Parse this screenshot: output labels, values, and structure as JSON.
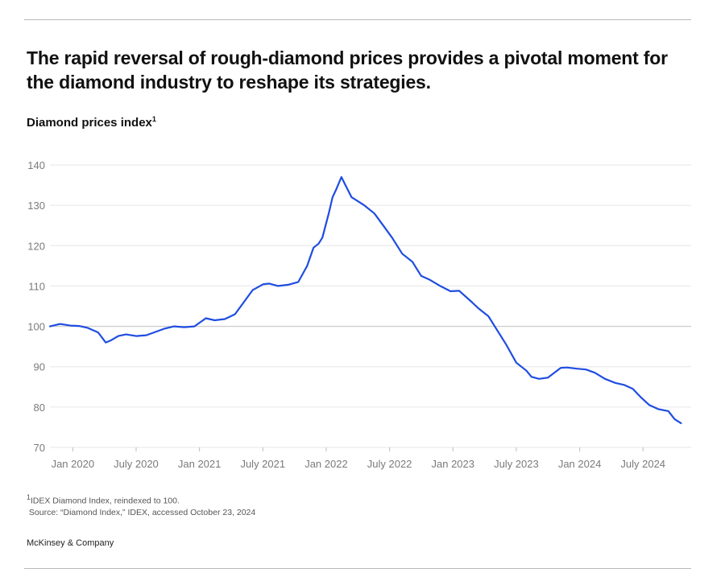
{
  "header": {
    "title": "The rapid reversal of rough-diamond prices provides a pivotal moment for the diamond industry to reshape its strategies.",
    "subtitle": "Diamond prices index",
    "subtitle_note": "1"
  },
  "footer": {
    "note_marker": "1",
    "note": "IDEX Diamond Index, reindexed to 100.",
    "source": " Source: “Diamond Index,” IDEX, accessed October 23, 2024",
    "brand": "McKinsey & Company"
  },
  "colors": {
    "line": "#1f4de0",
    "grid": "#e6e6e6",
    "baseline": "#d4d4d4",
    "tick_text": "#7a7a7a"
  },
  "chart_data": {
    "type": "line",
    "title": "Diamond prices index",
    "ylim": [
      70,
      140
    ],
    "y_ticks": [
      70,
      80,
      90,
      100,
      110,
      120,
      130,
      140
    ],
    "x_ticks": [
      {
        "label": "Jan 2020",
        "x": 2020.0
      },
      {
        "label": "July 2020",
        "x": 2020.5
      },
      {
        "label": "Jan 2021",
        "x": 2021.0
      },
      {
        "label": "July 2021",
        "x": 2021.5
      },
      {
        "label": "Jan 2022",
        "x": 2022.0
      },
      {
        "label": "July 2022",
        "x": 2022.5
      },
      {
        "label": "Jan 2023",
        "x": 2023.0
      },
      {
        "label": "July 2023",
        "x": 2023.5
      },
      {
        "label": "Jan 2024",
        "x": 2024.0
      },
      {
        "label": "July 2024",
        "x": 2024.5
      }
    ],
    "xlim": [
      2019.82,
      2024.88
    ],
    "grid": true,
    "series": [
      {
        "x": [
          2019.82,
          2019.9,
          2019.98,
          2020.05,
          2020.12,
          2020.2,
          2020.26,
          2020.3,
          2020.36,
          2020.42,
          2020.5,
          2020.58,
          2020.65,
          2020.72,
          2020.8,
          2020.88,
          2020.96,
          2021.05,
          2021.12,
          2021.2,
          2021.28,
          2021.35,
          2021.42,
          2021.5,
          2021.55,
          2021.62,
          2021.7,
          2021.78,
          2021.85,
          2021.9,
          2021.94,
          2021.97,
          2022.02,
          2022.05,
          2022.08,
          2022.12,
          2022.16,
          2022.2,
          2022.25,
          2022.3,
          2022.38,
          2022.45,
          2022.52,
          2022.6,
          2022.68,
          2022.75,
          2022.82,
          2022.9,
          2022.98,
          2023.05,
          2023.15,
          2023.2,
          2023.28,
          2023.35,
          2023.42,
          2023.5,
          2023.58,
          2023.62,
          2023.68,
          2023.75,
          2023.85,
          2023.9,
          2023.98,
          2024.05,
          2024.12,
          2024.2,
          2024.28,
          2024.35,
          2024.42,
          2024.48,
          2024.55,
          2024.62,
          2024.7,
          2024.75,
          2024.8
        ],
        "y": [
          100,
          100.6,
          100.2,
          100.1,
          99.6,
          98.5,
          96.0,
          96.5,
          97.6,
          98.0,
          97.6,
          97.8,
          98.6,
          99.4,
          100.0,
          99.8,
          100.0,
          102.0,
          101.5,
          101.8,
          103.0,
          106.0,
          109.0,
          110.4,
          110.6,
          110.0,
          110.3,
          111.0,
          115.0,
          119.5,
          120.5,
          122.0,
          128.0,
          132.0,
          134.0,
          137.0,
          134.5,
          132.0,
          131.0,
          130.0,
          128.0,
          125.0,
          122.0,
          118.0,
          116.0,
          112.5,
          111.5,
          110.0,
          108.7,
          108.8,
          106.0,
          104.5,
          102.5,
          99.0,
          95.5,
          91.0,
          89.0,
          87.5,
          87.0,
          87.3,
          89.7,
          89.8,
          89.5,
          89.3,
          88.5,
          87.0,
          86.0,
          85.5,
          84.5,
          82.5,
          80.5,
          79.5,
          79.0,
          77.0,
          76.0
        ]
      }
    ]
  }
}
